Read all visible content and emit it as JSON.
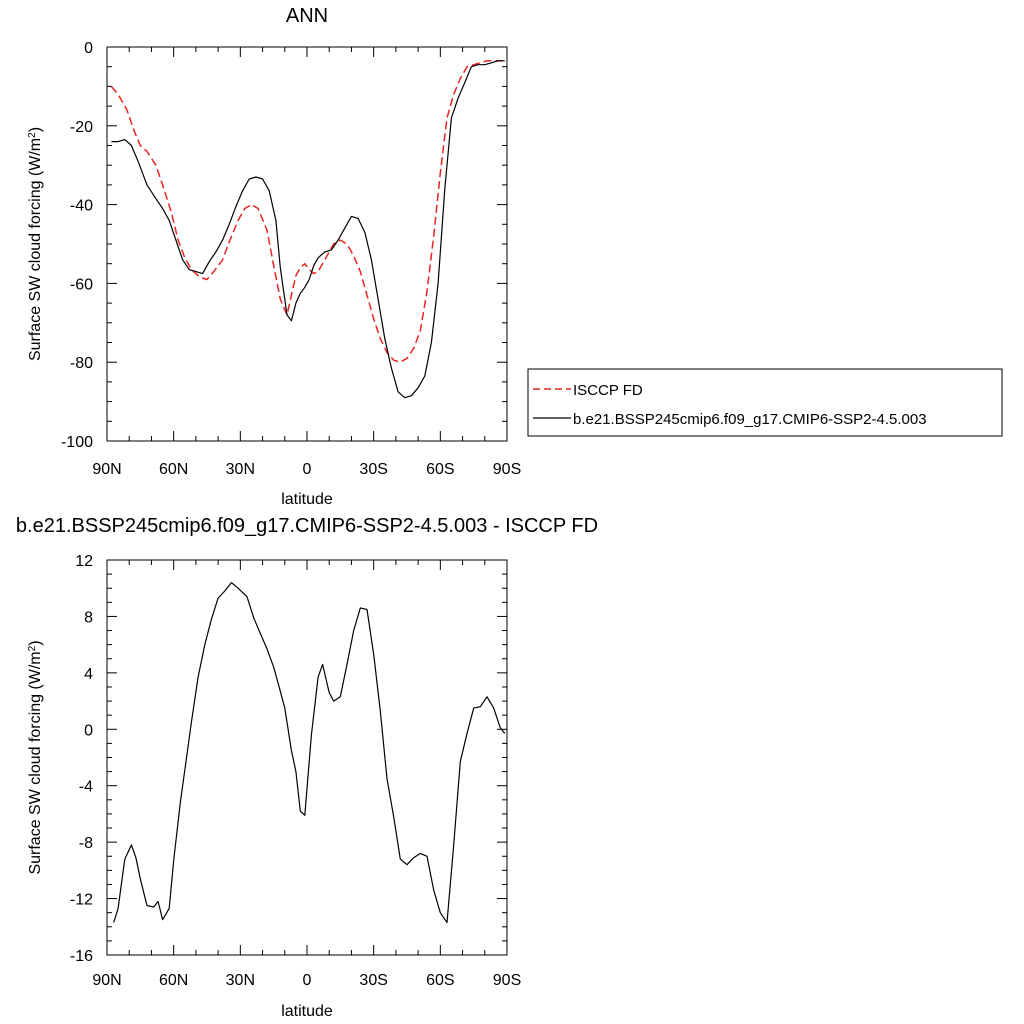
{
  "chart_data": [
    {
      "type": "line",
      "title": "ANN",
      "xlabel": "latitude",
      "ylabel": "Surface SW cloud forcing (W/m²)",
      "ylabel_main": "Surface SW cloud forcing (W/m",
      "ylabel_sup": "2",
      "ylabel_end": ")",
      "xlim": [
        -90,
        90
      ],
      "ylim": [
        -100,
        0
      ],
      "xticks": [
        -90,
        -60,
        -30,
        0,
        30,
        60,
        90
      ],
      "xtick_labels": [
        "90N",
        "60N",
        "30N",
        "0",
        "30S",
        "60S",
        "90S"
      ],
      "yticks": [
        0,
        -20,
        -40,
        -60,
        -80,
        -100
      ],
      "ytick_labels": [
        "0",
        "-20",
        "-40",
        "-60",
        "-80",
        "-100"
      ],
      "grid": false,
      "legend_position": "right",
      "series": [
        {
          "name": "ISCCP FD",
          "color": "#e8241f",
          "dash": true,
          "x": [
            -88,
            -85,
            -81,
            -78,
            -75,
            -72,
            -68,
            -65,
            -61,
            -58,
            -55,
            -52,
            -48,
            -45,
            -42,
            -38,
            -35,
            -31,
            -28,
            -25,
            -22,
            -18,
            -15,
            -12,
            -9,
            -7,
            -5,
            -3,
            -1,
            1,
            3,
            5,
            8,
            12,
            15,
            18,
            21,
            24,
            27,
            30,
            33,
            36,
            39,
            42,
            45,
            48,
            51,
            54,
            57,
            60,
            63,
            66,
            69,
            72,
            75,
            78,
            81,
            85,
            88
          ],
          "values": [
            -10,
            -12,
            -16,
            -21,
            -25,
            -26.5,
            -30,
            -35,
            -42,
            -49,
            -53.5,
            -56.5,
            -58.5,
            -59,
            -57,
            -54,
            -49.5,
            -44,
            -41,
            -40,
            -41,
            -46.5,
            -55.5,
            -64,
            -68,
            -63,
            -58,
            -56,
            -55,
            -56.5,
            -57.5,
            -57,
            -54,
            -50,
            -49,
            -50,
            -53,
            -57,
            -63,
            -69,
            -74,
            -77.5,
            -79.5,
            -80,
            -79,
            -76.5,
            -72,
            -62,
            -48,
            -32,
            -18,
            -12,
            -8,
            -5,
            -4.5,
            -4,
            -3.5,
            -3.5,
            -3.5
          ]
        },
        {
          "name": "b.e21.BSSP245cmip6.f09_g17.CMIP6-SSP2-4.5.003",
          "color": "#000000",
          "dash": false,
          "x": [
            -88,
            -85,
            -82,
            -79,
            -76,
            -72,
            -68,
            -65,
            -62,
            -59,
            -56,
            -53,
            -50,
            -47,
            -44,
            -41,
            -38,
            -35,
            -32,
            -29,
            -26,
            -23,
            -20,
            -17,
            -14,
            -12,
            -9,
            -7,
            -5,
            -3,
            -1,
            1,
            3,
            5,
            8,
            11,
            14,
            17,
            20,
            23,
            26,
            29,
            32,
            35,
            38,
            41,
            44,
            47,
            50,
            53,
            56,
            59,
            62,
            65,
            68,
            71,
            74,
            77,
            80,
            83,
            86,
            89
          ],
          "values": [
            -24,
            -24,
            -23.5,
            -25,
            -29,
            -35,
            -38.5,
            -41,
            -44,
            -49,
            -54,
            -56.5,
            -57,
            -57.5,
            -54.5,
            -52,
            -49,
            -45,
            -40.5,
            -36.5,
            -33.5,
            -33,
            -33.5,
            -36.5,
            -44,
            -56,
            -68,
            -69.5,
            -65,
            -62.5,
            -61,
            -59,
            -55.5,
            -53.5,
            -52,
            -51.5,
            -49,
            -46,
            -43,
            -43.5,
            -47,
            -54,
            -64,
            -74,
            -81.5,
            -87.5,
            -89,
            -88.5,
            -86.5,
            -83.5,
            -75,
            -60,
            -36,
            -18,
            -13,
            -9,
            -5,
            -4.5,
            -4.5,
            -4,
            -3.5,
            -3.5
          ]
        }
      ]
    },
    {
      "type": "line",
      "title": "b.e21.BSSP245cmip6.f09_g17.CMIP6-SSP2-4.5.003 - ISCCP FD",
      "xlabel": "latitude",
      "ylabel": "Surface SW cloud forcing (W/m²)",
      "ylabel_main": "Surface SW cloud forcing (W/m",
      "ylabel_sup": "2",
      "ylabel_end": ")",
      "xlim": [
        -90,
        90
      ],
      "ylim": [
        -16,
        12
      ],
      "xticks": [
        -90,
        -60,
        -30,
        0,
        30,
        60,
        90
      ],
      "xtick_labels": [
        "90N",
        "60N",
        "30N",
        "0",
        "30S",
        "60S",
        "90S"
      ],
      "yticks": [
        12,
        8,
        4,
        0,
        -4,
        -8,
        -12,
        -16
      ],
      "ytick_labels": [
        "12",
        "8",
        "4",
        "0",
        "-4",
        "-8",
        "-12",
        "-16"
      ],
      "grid": false,
      "series": [
        {
          "color": "#000000",
          "dash": false,
          "x": [
            -87,
            -85,
            -82,
            -79,
            -77,
            -75,
            -72,
            -69,
            -67,
            -65,
            -62,
            -60,
            -57,
            -55,
            -52,
            -49,
            -46,
            -43,
            -40,
            -37,
            -34,
            -31,
            -27,
            -24,
            -21,
            -18,
            -15,
            -12,
            -10,
            -7,
            -5,
            -3,
            -1,
            2,
            5,
            7,
            10,
            12,
            15,
            18,
            21,
            24,
            27,
            30,
            33,
            36,
            39,
            42,
            45,
            48,
            51,
            54,
            57,
            60,
            63,
            66,
            69,
            72,
            75,
            78,
            81,
            84,
            87,
            89
          ],
          "values": [
            -13.7,
            -12.7,
            -9.2,
            -8.2,
            -9.1,
            -10.6,
            -12.5,
            -12.6,
            -12.2,
            -13.5,
            -12.7,
            -9.3,
            -5.2,
            -2.9,
            0.5,
            3.7,
            6,
            7.8,
            9.3,
            9.8,
            10.4,
            10,
            9.4,
            7.9,
            6.8,
            5.7,
            4.4,
            2.7,
            1.5,
            -1.5,
            -3,
            -5.8,
            -6.1,
            -0.4,
            3.7,
            4.6,
            2.6,
            2,
            2.3,
            4.6,
            7,
            8.6,
            8.5,
            5.3,
            1.3,
            -3.5,
            -6.2,
            -9.2,
            -9.6,
            -9.1,
            -8.8,
            -9,
            -11.4,
            -13,
            -13.7,
            -8.2,
            -2.3,
            -0.3,
            1.5,
            1.6,
            2.3,
            1.5,
            0.1,
            -0.3
          ]
        }
      ]
    }
  ]
}
